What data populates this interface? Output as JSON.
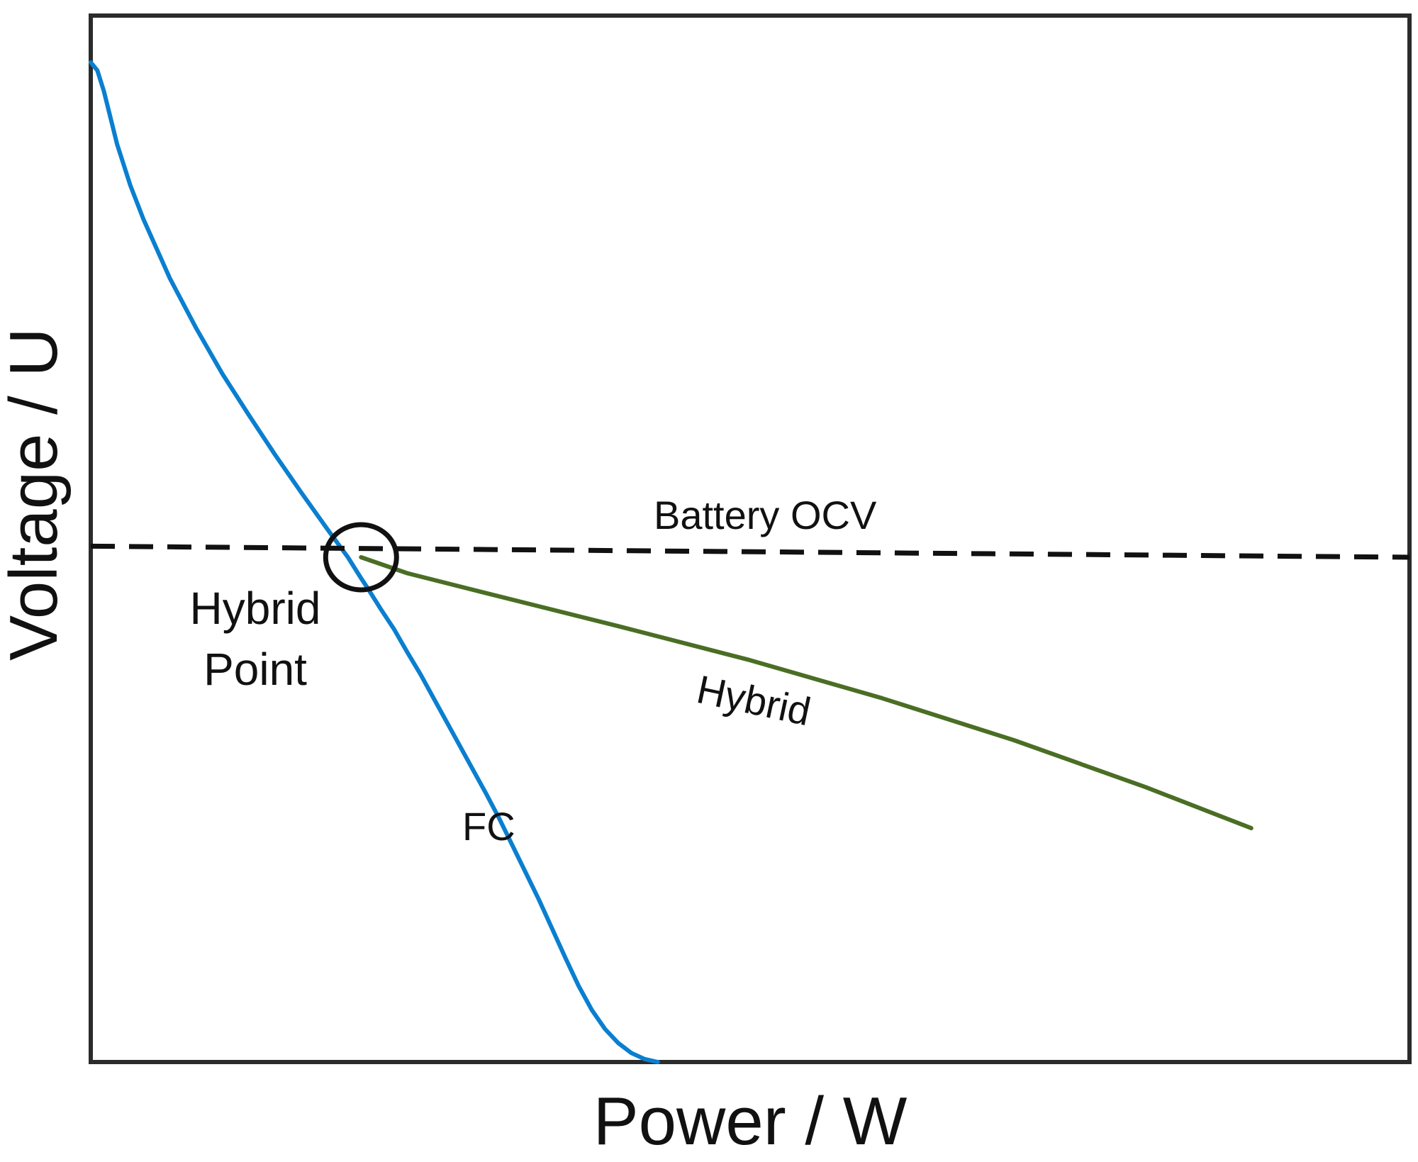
{
  "chart_data": {
    "type": "line",
    "title": "",
    "xlabel": "Power / W",
    "ylabel": "Voltage / U",
    "xlim": [
      0,
      100
    ],
    "ylim": [
      0,
      100
    ],
    "grid": false,
    "ticks": "none",
    "series": [
      {
        "name": "FC",
        "color": "#0a7fd0",
        "style": "solid",
        "x": [
          0,
          0.5,
          1,
          2,
          3,
          4,
          6,
          8,
          10,
          12,
          14,
          16,
          18,
          19.5,
          20.5,
          21,
          22,
          23,
          24,
          25,
          26,
          27,
          28,
          29,
          30,
          31,
          32,
          33,
          34,
          35,
          36,
          37,
          38,
          39,
          40,
          41,
          42,
          43
        ],
        "y": [
          100,
          99.2,
          97.1,
          91.8,
          87.7,
          84.3,
          78.4,
          73.4,
          68.8,
          64.7,
          60.7,
          56.9,
          53.2,
          50.5,
          48.4,
          47.4,
          45.3,
          43.3,
          41.0,
          38.8,
          36.4,
          34.0,
          31.6,
          29.2,
          26.8,
          24.3,
          21.6,
          18.9,
          16.2,
          13.3,
          10.4,
          7.6,
          5.2,
          3.3,
          1.9,
          0.9,
          0.3,
          0
        ]
      },
      {
        "name": "Battery OCV",
        "color": "#111111",
        "style": "dashed",
        "x": [
          0,
          100
        ],
        "y": [
          51.6,
          50.5
        ]
      },
      {
        "name": "Hybrid",
        "color": "#4a6e24",
        "style": "solid",
        "x": [
          20.5,
          24,
          30,
          40,
          50,
          60,
          70,
          80,
          88
        ],
        "y": [
          50.5,
          48.9,
          46.9,
          43.6,
          40.2,
          36.4,
          32.2,
          27.5,
          23.4
        ]
      }
    ],
    "annotations": [
      {
        "text": "Hybrid Point",
        "marker": "circle",
        "x": 20.5,
        "y": 50.5
      }
    ],
    "series_labels": {
      "fc": "FC",
      "ocv": "Battery OCV",
      "hybrid": "Hybrid"
    },
    "hybrid_point_label": {
      "line1": "Hybrid",
      "line2": "Point"
    }
  }
}
